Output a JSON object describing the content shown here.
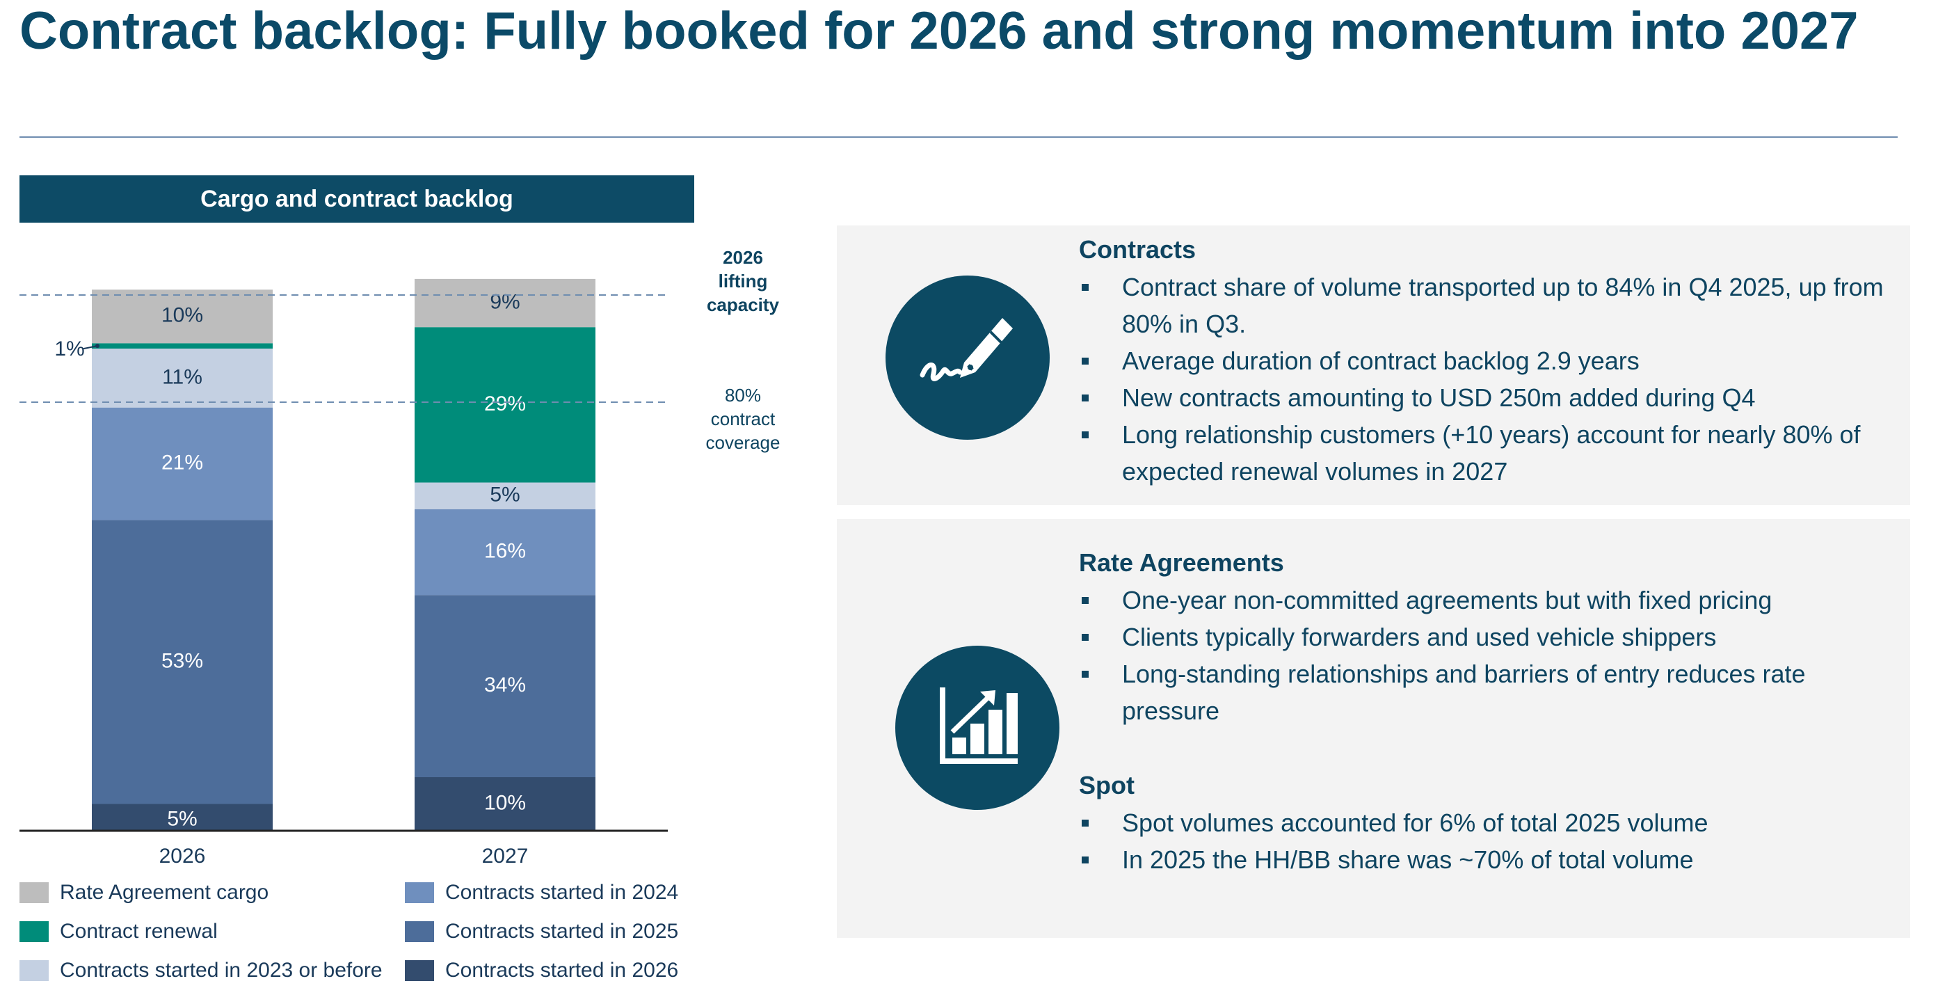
{
  "page": {
    "title": "Contract backlog: Fully booked for 2026 and strong momentum into 2027"
  },
  "chart_header": "Cargo and contract backlog",
  "chart_data": {
    "type": "bar",
    "stacked": true,
    "title": "Cargo and contract backlog",
    "categories": [
      "2026",
      "2027"
    ],
    "series": [
      {
        "name": "Contracts started in 2026",
        "values": [
          5,
          10
        ],
        "labels": [
          "5%",
          "10%"
        ],
        "color": "#334c6e",
        "label_color": "#ffffff"
      },
      {
        "name": "Contracts started in 2025",
        "values": [
          53,
          34
        ],
        "labels": [
          "53%",
          "34%"
        ],
        "color": "#4d6d9a",
        "label_color": "#ffffff"
      },
      {
        "name": "Contracts started in 2024",
        "values": [
          21,
          16
        ],
        "labels": [
          "21%",
          "16%"
        ],
        "color": "#6f8fbe",
        "label_color": "#ffffff"
      },
      {
        "name": "Contracts started in 2023 or before",
        "values": [
          11,
          5
        ],
        "labels": [
          "11%",
          "5%"
        ],
        "color": "#c4d0e2",
        "label_color": "#1a3a5a"
      },
      {
        "name": "Contract renewal",
        "values": [
          1,
          29
        ],
        "labels": [
          "1%",
          "29%"
        ],
        "color": "#008c7a",
        "label_color": "#ffffff"
      },
      {
        "name": "Rate Agreement cargo",
        "values": [
          10,
          9
        ],
        "labels": [
          "10%",
          "9%"
        ],
        "color": "#bdbdbd",
        "label_color": "#1a3a5a"
      }
    ],
    "reference_lines": [
      {
        "value": 100,
        "label": "2026 lifting capacity",
        "label_lines": [
          "2026",
          "lifting",
          "capacity"
        ],
        "bold": true
      },
      {
        "value": 80,
        "label": "80% contract coverage",
        "label_lines": [
          "80%",
          "contract",
          "coverage"
        ],
        "bold": false
      }
    ],
    "ylim": [
      0,
      100
    ]
  },
  "legend": [
    {
      "label": "Rate Agreement cargo",
      "color": "#bdbdbd"
    },
    {
      "label": "Contract renewal",
      "color": "#008c7a"
    },
    {
      "label": "Contracts started in 2023 or before",
      "color": "#c4d0e2"
    },
    {
      "label": "Contracts started in 2024",
      "color": "#6f8fbe"
    },
    {
      "label": "Contracts started in 2025",
      "color": "#4d6d9a"
    },
    {
      "label": "Contracts started in 2026",
      "color": "#334c6e"
    }
  ],
  "contracts": {
    "title": "Contracts",
    "icon": "pen-signature-icon",
    "bullets": [
      "Contract share of volume transported up to 84% in Q4 2025, up from 80% in Q3.",
      "Average duration of contract backlog 2.9 years",
      "New contracts amounting to USD 250m added during Q4",
      "Long relationship customers (+10 years) account for nearly 80% of expected renewal volumes in 2027"
    ]
  },
  "rate_agreements": {
    "title": "Rate Agreements",
    "icon": "growth-chart-icon",
    "bullets": [
      "One-year non-committed agreements but with fixed pricing",
      "Clients typically forwarders and used vehicle shippers",
      "Long-standing relationships and barriers of entry reduces rate pressure"
    ]
  },
  "spot": {
    "title": "Spot",
    "bullets": [
      "Spot volumes accounted for 6% of total 2025 volume",
      "In 2025 the HH/BB share was ~70% of total volume"
    ]
  },
  "colors": {
    "title": "#0b4a68",
    "header_bg": "#0d4b66",
    "panel_bg": "#f3f3f3",
    "icon_bg": "#0c4a63"
  }
}
